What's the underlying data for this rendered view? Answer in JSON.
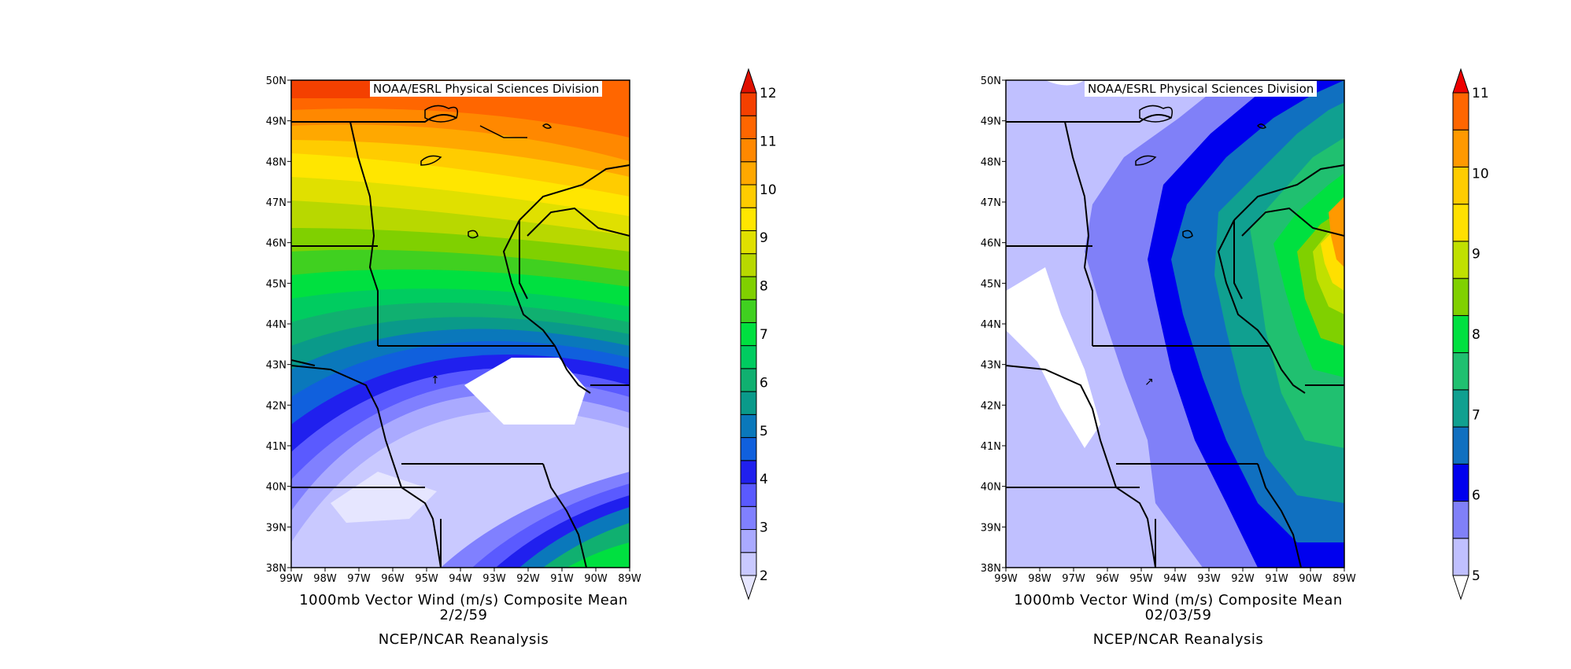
{
  "maps": [
    {
      "credit": "NOAA/ESRL Physical Sciences Division",
      "title_line1": "1000mb Vector Wind (m/s) Composite Mean",
      "title_line2": "2/2/59",
      "source": "NCEP/NCAR Reanalysis",
      "lat_labels": [
        "50N",
        "49N",
        "48N",
        "47N",
        "46N",
        "45N",
        "44N",
        "43N",
        "42N",
        "41N",
        "40N",
        "39N",
        "38N"
      ],
      "lon_labels": [
        "99W",
        "98W",
        "97W",
        "96W",
        "95W",
        "94W",
        "93W",
        "92W",
        "91W",
        "90W",
        "89W"
      ],
      "colorbar": {
        "labels": [
          "12",
          "11",
          "10",
          "9",
          "8",
          "7",
          "6",
          "5",
          "4",
          "3",
          "2"
        ],
        "min": 2,
        "max": 12,
        "step": 0.5,
        "colors": [
          "#e6e6ff",
          "#c9c9ff",
          "#aaaaff",
          "#8080ff",
          "#5a5aff",
          "#2020ee",
          "#1060dd",
          "#0a78bb",
          "#0a9a8a",
          "#10b070",
          "#00cc60",
          "#00e040",
          "#40d020",
          "#80d000",
          "#b8d800",
          "#e0e000",
          "#ffe600",
          "#ffcc00",
          "#ffa800",
          "#ff8800",
          "#ff6600",
          "#f44000",
          "#e01000"
        ]
      }
    },
    {
      "credit": "NOAA/ESRL Physical Sciences Division",
      "title_line1": "1000mb Vector Wind (m/s) Composite Mean",
      "title_line2": "02/03/59",
      "source": "NCEP/NCAR Reanalysis",
      "lat_labels": [
        "50N",
        "49N",
        "48N",
        "47N",
        "46N",
        "45N",
        "44N",
        "43N",
        "42N",
        "41N",
        "40N",
        "39N",
        "38N"
      ],
      "lon_labels": [
        "99W",
        "98W",
        "97W",
        "96W",
        "95W",
        "94W",
        "93W",
        "92W",
        "91W",
        "90W",
        "89W"
      ],
      "colorbar": {
        "labels": [
          "11",
          "10",
          "9",
          "8",
          "7",
          "6",
          "5"
        ],
        "min": 5,
        "max": 11,
        "step": 0.5,
        "colors": [
          "#ffffff",
          "#c0c0ff",
          "#8080f8",
          "#0000ee",
          "#1070c0",
          "#10a090",
          "#20c070",
          "#00e040",
          "#80d000",
          "#c0e000",
          "#ffe000",
          "#ffcc00",
          "#ff9900",
          "#ff6600",
          "#ee0000"
        ]
      }
    }
  ]
}
